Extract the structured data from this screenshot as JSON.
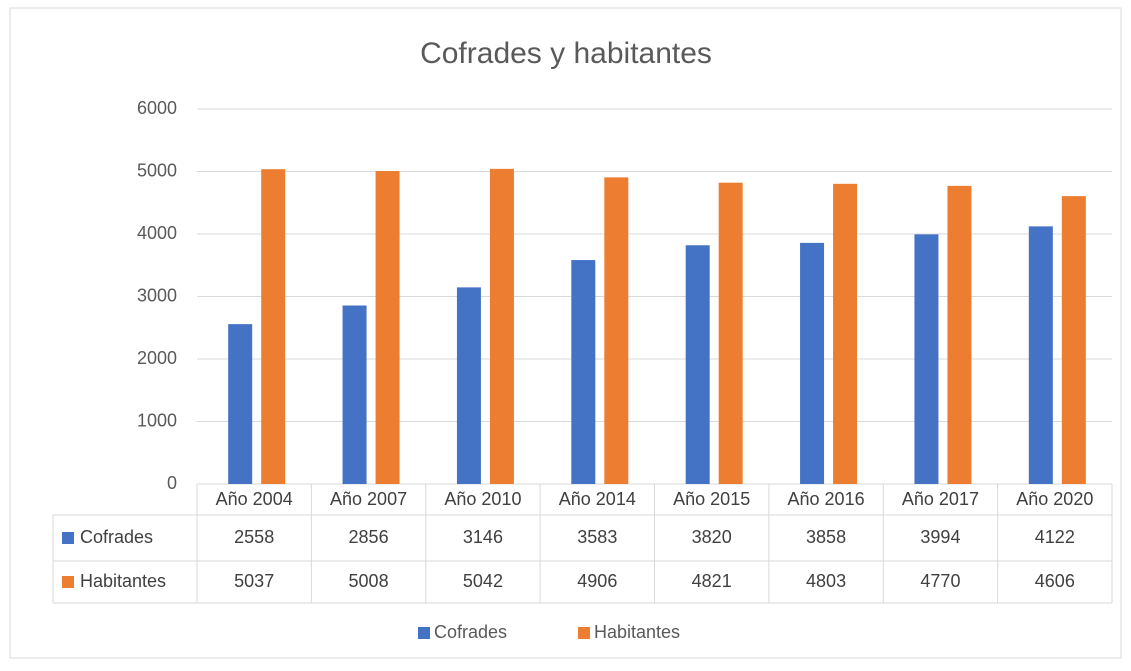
{
  "chart_data": {
    "type": "bar",
    "title": "Cofrades y habitantes",
    "categories": [
      "Año 2004",
      "Año 2007",
      "Año 2010",
      "Año 2014",
      "Año 2015",
      "Año 2016",
      "Año 2017",
      "Año 2020"
    ],
    "series": [
      {
        "name": "Cofrades",
        "color": "#4472c4",
        "values": [
          2558,
          2856,
          3146,
          3583,
          3820,
          3858,
          3994,
          4122
        ]
      },
      {
        "name": "Habitantes",
        "color": "#ed7d31",
        "values": [
          5037,
          5008,
          5042,
          4906,
          4821,
          4803,
          4770,
          4606
        ]
      }
    ],
    "ylim": [
      0,
      6000
    ],
    "yticks": [
      0,
      1000,
      2000,
      3000,
      4000,
      5000,
      6000
    ],
    "grid": true,
    "legend": "bottom"
  }
}
